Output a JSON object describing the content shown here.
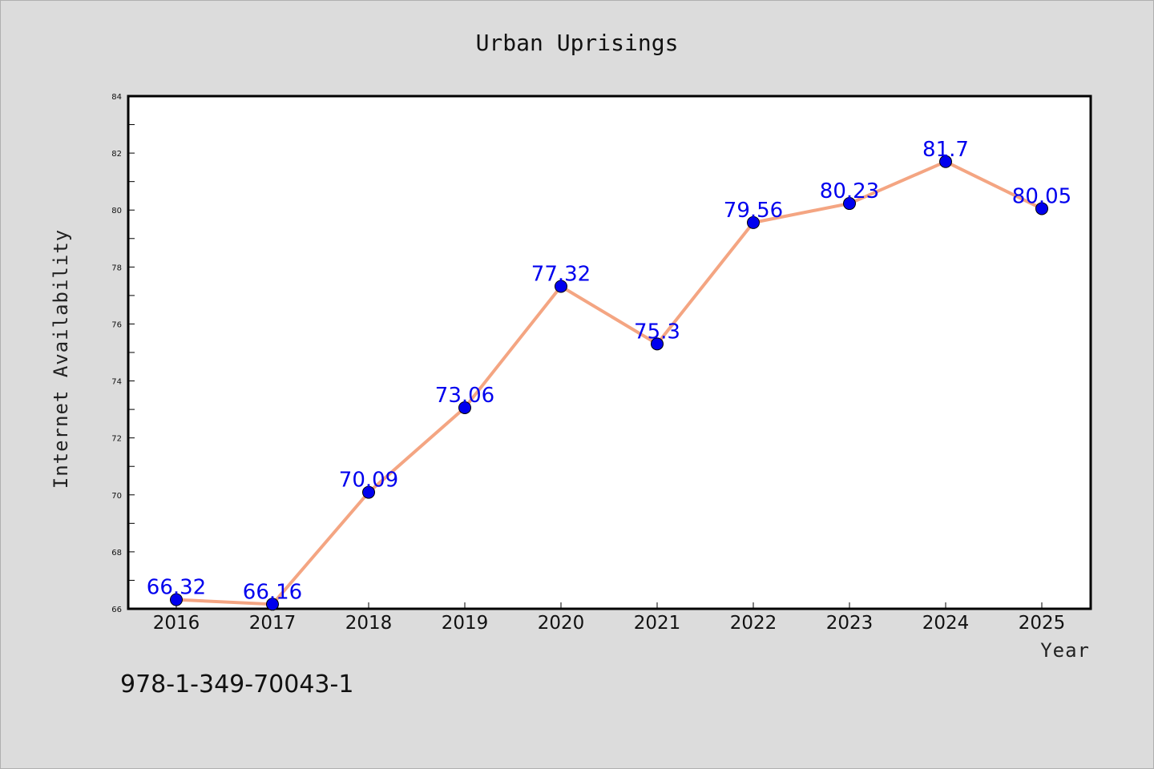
{
  "chart_data": {
    "type": "line",
    "title": "Urban Uprisings",
    "xlabel": "Year",
    "ylabel": "Internet Availability",
    "categories": [
      "2016",
      "2017",
      "2018",
      "2019",
      "2020",
      "2021",
      "2022",
      "2023",
      "2024",
      "2025"
    ],
    "series": [
      {
        "values": [
          66.32,
          66.16,
          70.09,
          73.06,
          77.32,
          75.3,
          79.56,
          80.23,
          81.7,
          80.05
        ]
      }
    ],
    "data_labels": [
      "66.32",
      "66.16",
      "70.09",
      "73.06",
      "77.32",
      "75.3",
      "79.56",
      "80.23",
      "81.7",
      "80.05"
    ],
    "ylim": [
      66,
      84
    ],
    "yticks": [
      "66",
      "68",
      "70",
      "72",
      "74",
      "76",
      "78",
      "80",
      "82",
      "84"
    ],
    "grid": false,
    "line_color": "#f4a582",
    "marker_color": "#0000ee",
    "label_color": "#0000ee"
  },
  "footer": {
    "text": "978-1-349-70043-1"
  }
}
